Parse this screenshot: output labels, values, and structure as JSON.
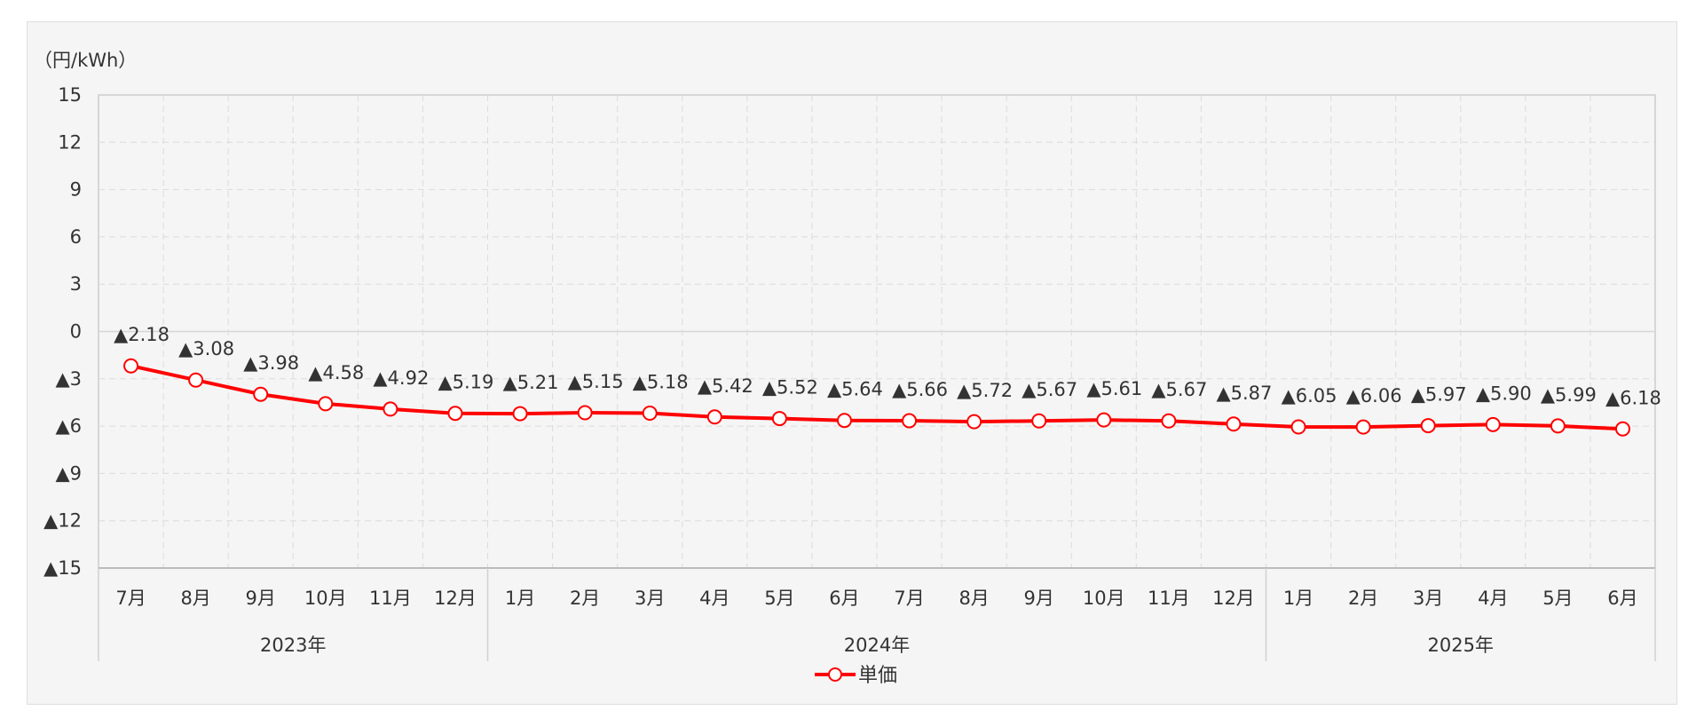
{
  "chart_data": {
    "type": "line",
    "unit_label": "（円/kWh）",
    "ylim": [
      -15,
      15
    ],
    "yticks": [
      15,
      12,
      9,
      6,
      3,
      0,
      -3,
      -6,
      -9,
      -12,
      -15
    ],
    "ytick_labels": [
      "15",
      "12",
      "9",
      "6",
      "3",
      "0",
      "▲3",
      "▲6",
      "▲9",
      "▲12",
      "▲15"
    ],
    "categories": [
      "7月",
      "8月",
      "9月",
      "10月",
      "11月",
      "12月",
      "1月",
      "2月",
      "3月",
      "4月",
      "5月",
      "6月",
      "7月",
      "8月",
      "9月",
      "10月",
      "11月",
      "12月",
      "1月",
      "2月",
      "3月",
      "4月",
      "5月",
      "6月"
    ],
    "year_groups": [
      {
        "label": "2023年",
        "count": 6
      },
      {
        "label": "2024年",
        "count": 12
      },
      {
        "label": "2025年",
        "count": 6
      }
    ],
    "grid": true,
    "legend_position": "bottom",
    "series": [
      {
        "name": "単価",
        "color": "#ff0000",
        "marker": "open-circle",
        "values": [
          -2.18,
          -3.08,
          -3.98,
          -4.58,
          -4.92,
          -5.19,
          -5.21,
          -5.15,
          -5.18,
          -5.42,
          -5.52,
          -5.64,
          -5.66,
          -5.72,
          -5.67,
          -5.61,
          -5.67,
          -5.87,
          -6.05,
          -6.06,
          -5.97,
          -5.9,
          -5.99,
          -6.18
        ],
        "labels": [
          "▲2.18",
          "▲3.08",
          "▲3.98",
          "▲4.58",
          "▲4.92",
          "▲5.19",
          "▲5.21",
          "▲5.15",
          "▲5.18",
          "▲5.42",
          "▲5.52",
          "▲5.64",
          "▲5.66",
          "▲5.72",
          "▲5.67",
          "▲5.61",
          "▲5.67",
          "▲5.87",
          "▲6.05",
          "▲6.06",
          "▲5.97",
          "▲5.90",
          "▲5.99",
          "▲6.18"
        ]
      }
    ]
  }
}
